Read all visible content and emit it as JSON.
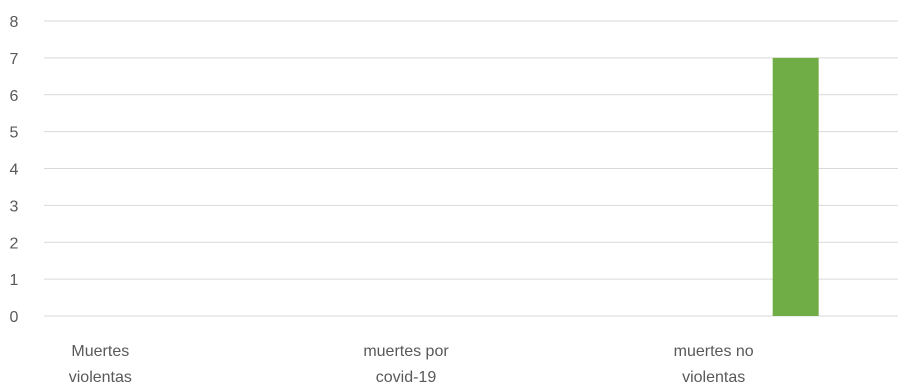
{
  "chart_data": {
    "type": "bar",
    "categories": [
      [
        "Muertes",
        "violentas"
      ],
      [
        "muertes por",
        "covid-19"
      ],
      [
        "muertes no",
        "violentas"
      ]
    ],
    "series": [
      {
        "values": [
          0,
          0,
          7
        ]
      }
    ],
    "bar_colors": [
      "#70ad47",
      "#70ad47",
      "#70ad47"
    ],
    "ylim": [
      0,
      8
    ],
    "yticks": [
      0,
      1,
      2,
      3,
      4,
      5,
      6,
      7,
      8
    ],
    "grid": true,
    "legend": "none",
    "gridline_color": "#d9d9d9",
    "text_color": "#595959"
  }
}
